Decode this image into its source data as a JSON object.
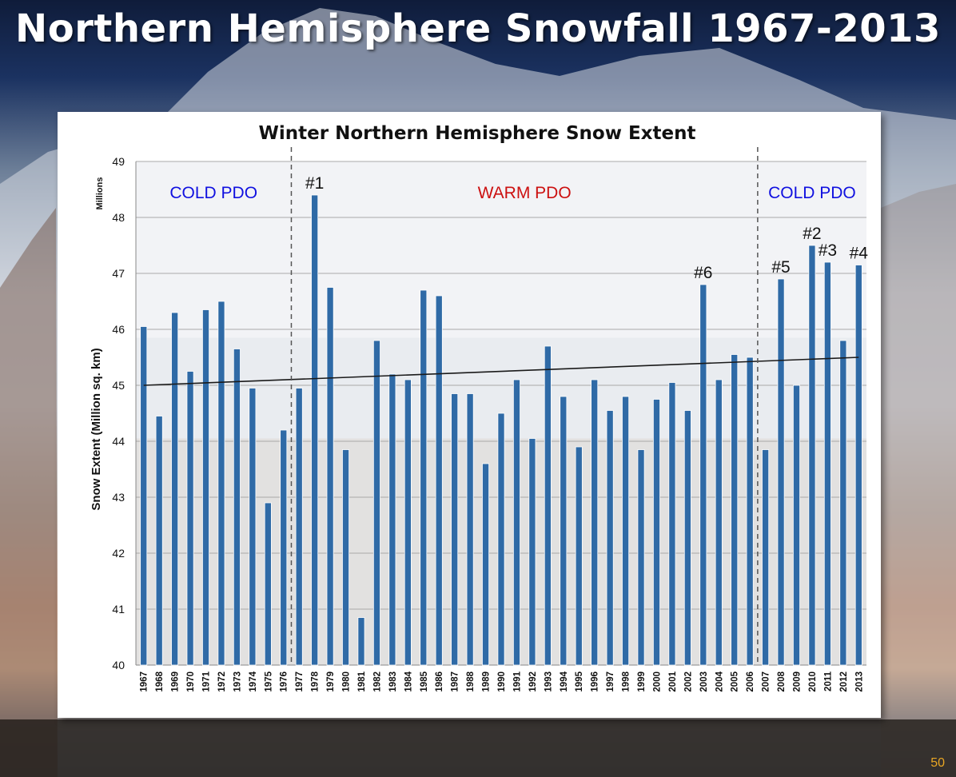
{
  "slide": {
    "title": "Northern Hemisphere Snowfall 1967-2013",
    "page_number": "50"
  },
  "colors": {
    "bar": "#2f6aa6",
    "trend": "#1a1a1a",
    "cold_pdo": "#1010e0",
    "warm_pdo": "#cc1010",
    "title_text": "#ffffff",
    "slide_number": "#e8a623"
  },
  "chart_data": {
    "type": "bar",
    "title": "Winter Northern Hemisphere Snow Extent",
    "ylabel": "Snow Extent (Million sq. km)",
    "y_unit_label": "Millions",
    "xlabel": "",
    "ylim": [
      40,
      49
    ],
    "yticks": [
      40,
      41,
      42,
      43,
      44,
      45,
      46,
      47,
      48,
      49
    ],
    "grid": true,
    "categories": [
      "1967",
      "1968",
      "1969",
      "1970",
      "1971",
      "1972",
      "1973",
      "1974",
      "1975",
      "1976",
      "1977",
      "1978",
      "1979",
      "1980",
      "1981",
      "1982",
      "1983",
      "1984",
      "1985",
      "1986",
      "1987",
      "1988",
      "1989",
      "1990",
      "1991",
      "1992",
      "1993",
      "1994",
      "1995",
      "1996",
      "1997",
      "1998",
      "1999",
      "2000",
      "2001",
      "2002",
      "2003",
      "2004",
      "2005",
      "2006",
      "2007",
      "2008",
      "2009",
      "2010",
      "2011",
      "2012",
      "2013"
    ],
    "values": [
      46.05,
      44.45,
      46.3,
      45.25,
      46.35,
      46.5,
      45.65,
      44.95,
      42.9,
      44.2,
      44.95,
      48.4,
      46.75,
      43.85,
      40.85,
      45.8,
      45.2,
      45.1,
      46.7,
      46.6,
      44.85,
      44.85,
      43.6,
      44.5,
      45.1,
      44.05,
      45.7,
      44.8,
      43.9,
      45.1,
      44.55,
      44.8,
      43.85,
      44.75,
      45.05,
      44.55,
      46.8,
      45.1,
      45.55,
      45.5,
      43.85,
      46.9,
      45.0,
      47.5,
      47.2,
      45.8,
      47.15
    ],
    "trendline": {
      "start": [
        1967,
        45.0
      ],
      "end": [
        2013,
        45.5
      ]
    },
    "rank_labels": [
      {
        "year": "1978",
        "label": "#1"
      },
      {
        "year": "2010",
        "label": "#2"
      },
      {
        "year": "2011",
        "label": "#3"
      },
      {
        "year": "2013",
        "label": "#4"
      },
      {
        "year": "2008",
        "label": "#5"
      },
      {
        "year": "2003",
        "label": "#6"
      }
    ],
    "regimes": [
      {
        "label": "COLD PDO",
        "from": "1967",
        "to": "1976",
        "kind": "cold"
      },
      {
        "label": "WARM PDO",
        "from": "1977",
        "to": "2006",
        "kind": "warm"
      },
      {
        "label": "COLD PDO",
        "from": "2007",
        "to": "2013",
        "kind": "cold"
      }
    ],
    "regime_dividers": [
      "1976/1977",
      "2006/2007"
    ]
  }
}
